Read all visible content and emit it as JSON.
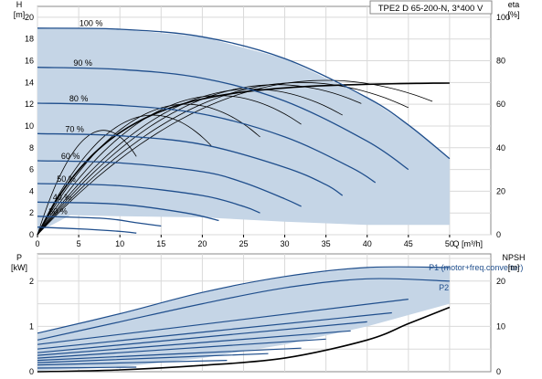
{
  "chart_data": [
    {
      "type": "line",
      "title": "TPE2 D 65-200-N, 3*400 V",
      "xlabel": "Q [m³/h]",
      "ylabel": "H\n[m]",
      "y2label": "eta\n[%]",
      "xlim": [
        0,
        55
      ],
      "ylim": [
        0,
        21
      ],
      "y2lim": [
        0,
        105
      ],
      "x_ticks": [
        0,
        5,
        10,
        15,
        20,
        25,
        30,
        35,
        40,
        45,
        50
      ],
      "y_ticks": [
        0,
        2,
        4,
        6,
        8,
        10,
        12,
        14,
        16,
        18,
        20
      ],
      "y2_ticks": [
        0,
        20,
        40,
        60,
        80,
        100
      ],
      "grid": true,
      "shaded_region": "operating range",
      "colors": {
        "curve": "#1f4e8c",
        "region": "#c5d5e6",
        "efficiency": "#000000"
      },
      "series": [
        {
          "name": "100 %",
          "x": [
            0,
            10,
            20,
            30,
            40,
            45,
            50
          ],
          "y": [
            19,
            18.9,
            18.2,
            16.2,
            12.6,
            10.1,
            7.0
          ]
        },
        {
          "name": "90 %",
          "x": [
            0,
            10,
            20,
            30,
            40,
            45
          ],
          "y": [
            15.4,
            15.2,
            14.4,
            12.3,
            8.6,
            6.0
          ]
        },
        {
          "name": "80 %",
          "x": [
            0,
            10,
            20,
            30,
            38,
            41
          ],
          "y": [
            12.1,
            11.9,
            11.1,
            9.0,
            6.2,
            4.8
          ]
        },
        {
          "name": "70 %",
          "x": [
            0,
            10,
            20,
            30,
            35,
            37
          ],
          "y": [
            9.3,
            9.1,
            8.3,
            6.2,
            4.6,
            3.6
          ]
        },
        {
          "name": "60 %",
          "x": [
            0,
            10,
            20,
            25,
            30,
            32
          ],
          "y": [
            6.8,
            6.6,
            5.8,
            4.8,
            3.3,
            2.6
          ]
        },
        {
          "name": "50 %",
          "x": [
            0,
            10,
            20,
            25,
            27
          ],
          "y": [
            4.7,
            4.5,
            3.6,
            2.6,
            2.0
          ]
        },
        {
          "name": "40 %",
          "x": [
            0,
            10,
            18,
            22
          ],
          "y": [
            3.0,
            2.8,
            2.0,
            1.3
          ]
        },
        {
          "name": "30 %",
          "x": [
            0,
            8,
            12,
            15
          ],
          "y": [
            1.7,
            1.5,
            1.1,
            0.8
          ]
        },
        {
          "name": "",
          "x": [
            0,
            6,
            10,
            12
          ],
          "y": [
            0.7,
            0.5,
            0.3,
            0.15
          ]
        }
      ],
      "labels": [
        "100 %",
        "90 %",
        "80 %",
        "70 %",
        "60 %",
        "50 %",
        "40 %",
        "30 %"
      ]
    },
    {
      "type": "line",
      "xlim": [
        0,
        55
      ],
      "ylabel": "P\n[kW]",
      "y2label": "NPSH\n[m]",
      "ylim": [
        0,
        2.6
      ],
      "y2lim": [
        0,
        26
      ],
      "y_ticks": [
        0,
        1,
        2
      ],
      "y2_ticks": [
        0,
        10,
        20
      ],
      "grid": true,
      "series": [
        {
          "name": "P1 (motor+freq.converter)",
          "x": [
            0,
            10,
            20,
            30,
            40,
            50
          ],
          "y": [
            0.85,
            1.28,
            1.75,
            2.1,
            2.3,
            2.3
          ]
        },
        {
          "name": "P2",
          "x": [
            0,
            10,
            20,
            30,
            40,
            50
          ],
          "y": [
            0.7,
            1.1,
            1.5,
            1.85,
            2.05,
            2.0
          ]
        },
        {
          "name": "",
          "x": [
            0,
            45
          ],
          "y": [
            0.6,
            1.6
          ]
        },
        {
          "name": "",
          "x": [
            0,
            43
          ],
          "y": [
            0.5,
            1.3
          ]
        },
        {
          "name": "",
          "x": [
            0,
            40
          ],
          "y": [
            0.42,
            1.1
          ]
        },
        {
          "name": "",
          "x": [
            0,
            38
          ],
          "y": [
            0.36,
            0.9
          ]
        },
        {
          "name": "",
          "x": [
            0,
            35
          ],
          "y": [
            0.3,
            0.72
          ]
        },
        {
          "name": "",
          "x": [
            0,
            32
          ],
          "y": [
            0.25,
            0.52
          ]
        },
        {
          "name": "",
          "x": [
            0,
            28
          ],
          "y": [
            0.2,
            0.4
          ]
        },
        {
          "name": "",
          "x": [
            0,
            23
          ],
          "y": [
            0.15,
            0.25
          ]
        },
        {
          "name": "",
          "x": [
            0,
            12
          ],
          "y": [
            0.08,
            0.1
          ]
        },
        {
          "name": "NPSH",
          "axis": "y2",
          "x": [
            0,
            10,
            20,
            30,
            40,
            45,
            50
          ],
          "y": [
            0,
            0.4,
            1.4,
            3.0,
            7.0,
            10.6,
            14.2
          ]
        }
      ]
    }
  ]
}
